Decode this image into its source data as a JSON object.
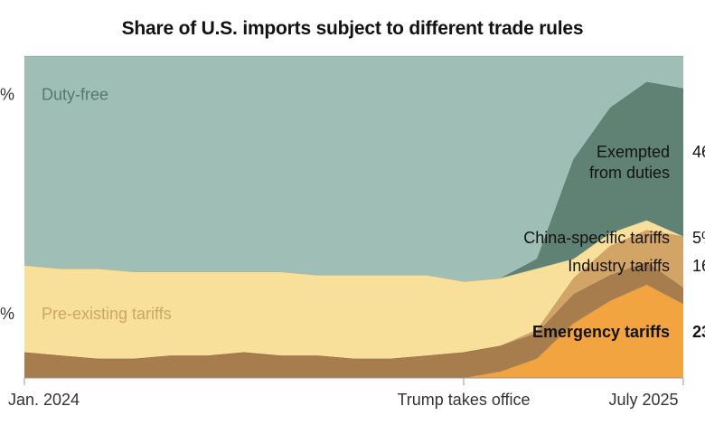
{
  "chart_data": {
    "type": "area",
    "title": "Share of U.S. imports subject to different trade rules",
    "x": [
      "2024-01",
      "2024-02",
      "2024-03",
      "2024-04",
      "2024-05",
      "2024-06",
      "2024-07",
      "2024-08",
      "2024-09",
      "2024-10",
      "2024-11",
      "2024-12",
      "2025-01",
      "2025-02",
      "2025-03",
      "2025-04",
      "2025-05",
      "2025-06",
      "2025-07"
    ],
    "x_tick_labels": [
      "Jan. 2024",
      "Trump takes office",
      "July 2025"
    ],
    "ylim": [
      0,
      100
    ],
    "y_tick_labels": [
      "%",
      "%"
    ],
    "series": [
      {
        "name": "Emergency tariffs",
        "color": "#f2a441",
        "values": [
          0,
          0,
          0,
          0,
          0,
          0,
          0,
          0,
          0,
          0,
          0,
          0,
          0,
          2,
          6,
          17,
          24,
          29,
          23
        ]
      },
      {
        "name": "China-specific tariffs",
        "color": "#a87d4e",
        "values": [
          8,
          7,
          6,
          6,
          7,
          7,
          8,
          7,
          7,
          6,
          6,
          7,
          8,
          8,
          8,
          9,
          8,
          7,
          5
        ]
      },
      {
        "name": "Industry tariffs",
        "color": "#d2a566",
        "values": [
          0,
          0,
          0,
          0,
          0,
          0,
          0,
          0,
          0,
          0,
          0,
          0,
          0,
          0,
          1,
          5,
          9,
          10,
          16
        ]
      },
      {
        "name": "Pre-existing tariffs",
        "color": "#f9e09a",
        "values": [
          27,
          27,
          28,
          27,
          26,
          26,
          25,
          26,
          25,
          26,
          26,
          25,
          22,
          21,
          19,
          6,
          4,
          3,
          0
        ]
      },
      {
        "name": "Exempted from duties",
        "color": "#5f8274",
        "values": [
          0,
          0,
          0,
          0,
          0,
          0,
          0,
          0,
          0,
          0,
          0,
          0,
          0,
          0,
          3,
          31,
          39,
          43,
          46
        ]
      },
      {
        "name": "Duty-free",
        "color": "#9fbeb5",
        "values": [
          65,
          66,
          66,
          67,
          67,
          67,
          67,
          67,
          68,
          68,
          68,
          68,
          70,
          69,
          63,
          32,
          16,
          8,
          10
        ]
      }
    ],
    "area_labels": {
      "duty_free": "Duty-free",
      "pre_existing": "Pre-existing tariffs"
    },
    "right_labels": [
      {
        "lines": [
          "Exempted",
          "from duties"
        ],
        "value": "46",
        "bold": false
      },
      {
        "lines": [
          "China-specific tariffs"
        ],
        "value": "5",
        "bold": false
      },
      {
        "lines": [
          "Industry tariffs"
        ],
        "value": "16",
        "bold": false
      },
      {
        "lines": [
          "Emergency tariffs"
        ],
        "value": "23",
        "bold": true
      }
    ],
    "value_suffix": "%"
  }
}
